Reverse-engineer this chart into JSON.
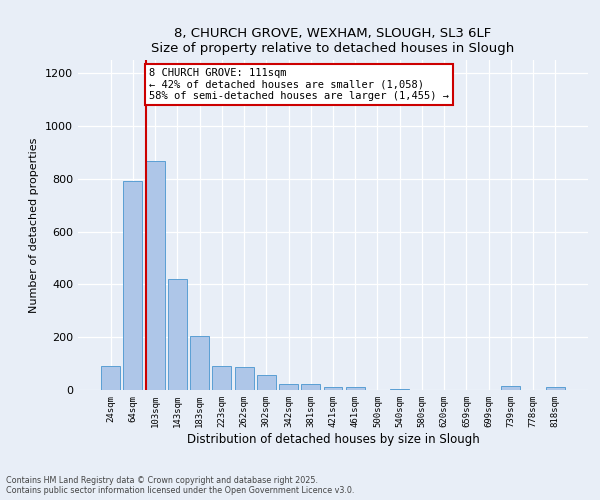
{
  "title1": "8, CHURCH GROVE, WEXHAM, SLOUGH, SL3 6LF",
  "title2": "Size of property relative to detached houses in Slough",
  "xlabel": "Distribution of detached houses by size in Slough",
  "ylabel": "Number of detached properties",
  "categories": [
    "24sqm",
    "64sqm",
    "103sqm",
    "143sqm",
    "183sqm",
    "223sqm",
    "262sqm",
    "302sqm",
    "342sqm",
    "381sqm",
    "421sqm",
    "461sqm",
    "500sqm",
    "540sqm",
    "580sqm",
    "620sqm",
    "659sqm",
    "699sqm",
    "739sqm",
    "778sqm",
    "818sqm"
  ],
  "values": [
    90,
    790,
    868,
    420,
    205,
    90,
    88,
    55,
    22,
    22,
    10,
    10,
    0,
    5,
    0,
    0,
    0,
    0,
    15,
    0,
    10
  ],
  "bar_color": "#aec6e8",
  "bar_edge_color": "#5a9fd4",
  "vline_color": "#cc0000",
  "vline_bar_index": 2,
  "annotation_text": "8 CHURCH GROVE: 111sqm\n← 42% of detached houses are smaller (1,058)\n58% of semi-detached houses are larger (1,455) →",
  "ylim": [
    0,
    1250
  ],
  "yticks": [
    0,
    200,
    400,
    600,
    800,
    1000,
    1200
  ],
  "footer": "Contains HM Land Registry data © Crown copyright and database right 2025.\nContains public sector information licensed under the Open Government Licence v3.0.",
  "bg_color": "#e8eef7"
}
